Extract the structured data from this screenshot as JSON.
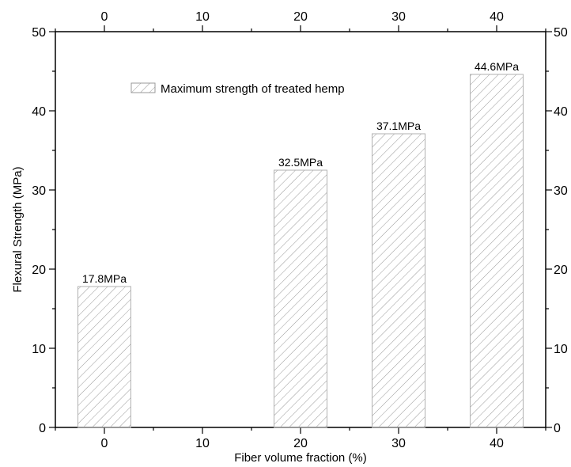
{
  "chart_data": {
    "type": "bar",
    "categories": [
      "0",
      "10",
      "20",
      "30",
      "40"
    ],
    "x": [
      0,
      10,
      20,
      30,
      40
    ],
    "series": [
      {
        "name": "Maximum strength of treated hemp",
        "values": [
          17.8,
          null,
          32.5,
          37.1,
          44.6
        ],
        "data_labels": [
          "17.8MPa",
          "",
          "32.5MPa",
          "37.1MPa",
          "44.6MPa"
        ]
      }
    ],
    "xlabel": "Fiber volume fraction (%)",
    "ylabel": "Flexural Strength (MPa)",
    "ylim": [
      0,
      50
    ],
    "xlim": [
      -5,
      45
    ],
    "y_ticks": [
      0,
      10,
      20,
      30,
      40,
      50
    ],
    "x_ticks": [
      0,
      10,
      20,
      30,
      40
    ],
    "right_axis_tick_labels": [
      "0",
      "10",
      "20",
      "30",
      "40",
      "50"
    ],
    "top_axis_tick_labels": [
      "0",
      "10",
      "20",
      "30",
      "40"
    ],
    "bar_fill": "hatched",
    "grid": false,
    "legend_position": "top-center"
  },
  "colors": {
    "axis": "#000000",
    "bar_outline": "#b0b0b0",
    "hatch": "#9a9a9a"
  }
}
